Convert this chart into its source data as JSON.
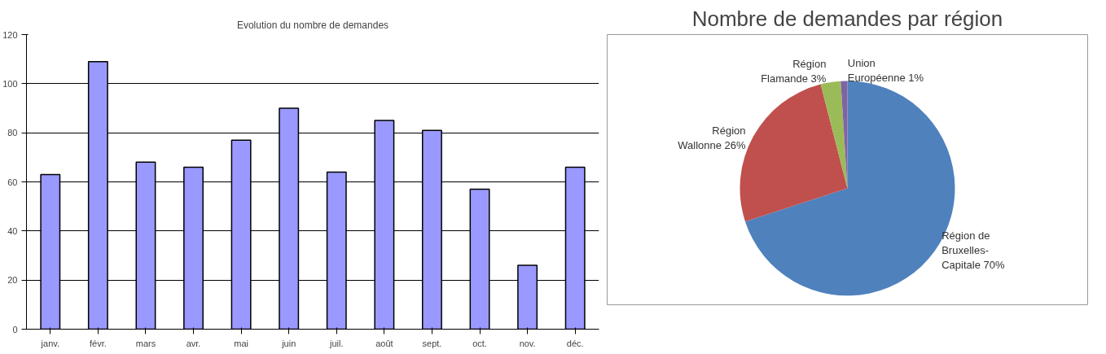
{
  "chart_data": [
    {
      "type": "bar",
      "title": "Evolution du nombre de demandes",
      "categories": [
        "janv.",
        "févr.",
        "mars",
        "avr.",
        "mai",
        "juin",
        "juil.",
        "août",
        "sept.",
        "oct.",
        "nov.",
        "déc."
      ],
      "values": [
        63,
        109,
        68,
        66,
        77,
        90,
        64,
        85,
        81,
        57,
        26,
        66
      ],
      "color": "#9999ff",
      "ylim": [
        0,
        120
      ],
      "yticks": [
        0,
        20,
        40,
        60,
        80,
        100,
        120
      ],
      "grid": "y",
      "legend": false
    },
    {
      "type": "pie",
      "title": "Nombre de demandes par région",
      "categories": [
        "Région de Bruxelles-Capitale",
        "Région Wallonne",
        "Région Flamande",
        "Union Européenne"
      ],
      "values": [
        70,
        26,
        3,
        1
      ],
      "value_labels": [
        "70%",
        "26%",
        "3%",
        "1%"
      ],
      "colors": [
        "#4f81bd",
        "#c0504d",
        "#9bbb59",
        "#8064a2"
      ],
      "legend": false
    }
  ]
}
